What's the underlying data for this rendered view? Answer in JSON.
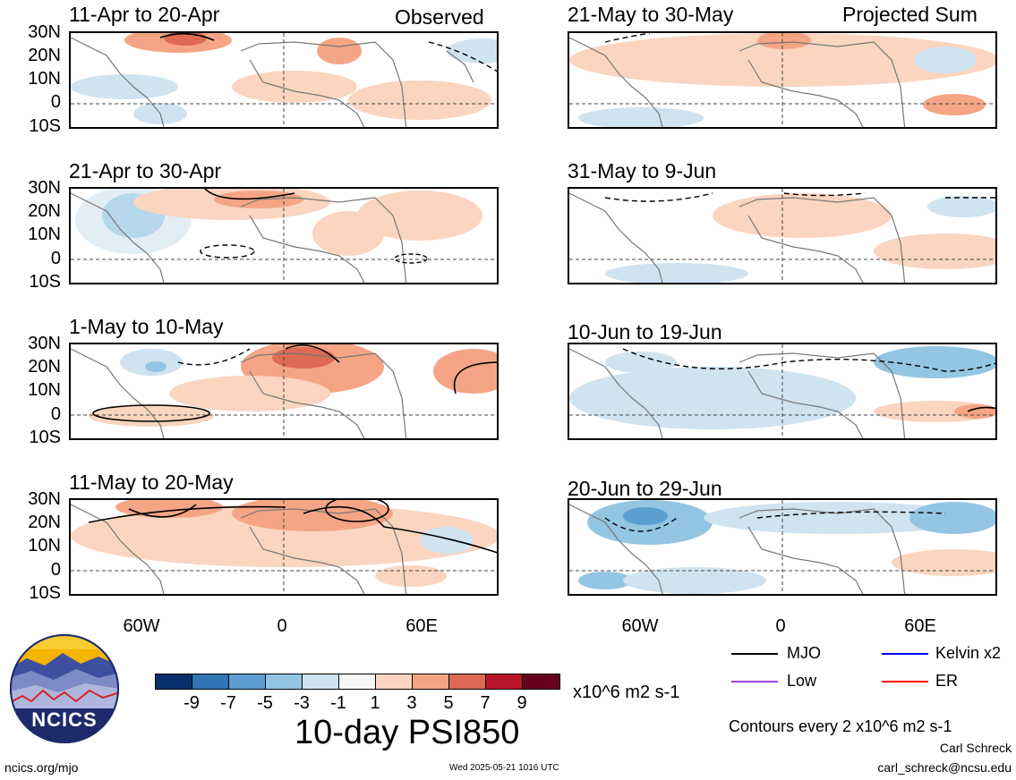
{
  "header": {
    "observed_label": "Observed",
    "projected_label": "Projected Sum"
  },
  "panels": [
    {
      "title": "11-Apr to 20-Apr"
    },
    {
      "title": "21-Apr to 30-Apr"
    },
    {
      "title": "1-May to 10-May"
    },
    {
      "title": "11-May to 20-May"
    },
    {
      "title": "21-May to 30-May"
    },
    {
      "title": "31-May to 9-Jun"
    },
    {
      "title": "10-Jun to 19-Jun"
    },
    {
      "title": "20-Jun to 29-Jun"
    }
  ],
  "lat_labels": [
    "30N",
    "20N",
    "10N",
    "0",
    "10S"
  ],
  "lon_labels": [
    "60W",
    "0",
    "60E"
  ],
  "colorbar": {
    "colors": [
      "#08306b",
      "#2f74b5",
      "#5b9fd1",
      "#94c5e2",
      "#cfe3f0",
      "#f7f7f7",
      "#fbd5c0",
      "#f5a585",
      "#de6a55",
      "#b8172a",
      "#67001f"
    ],
    "labels": [
      "-9",
      "-7",
      "-5",
      "-3",
      "-1",
      "1",
      "3",
      "5",
      "7",
      "9"
    ],
    "units": "x10^6 m2 s-1"
  },
  "main_title": "10-day PSI850",
  "legend": {
    "items": [
      {
        "label": "MJO",
        "color": "#000000"
      },
      {
        "label": "Kelvin x2",
        "color": "#0000ff"
      },
      {
        "label": "Low",
        "color": "#a040e0"
      },
      {
        "label": "ER",
        "color": "#ff0000"
      }
    ],
    "contour_note": "Contours every 2 x10^6 m2 s-1"
  },
  "logo": {
    "text": "NCICS"
  },
  "footer": {
    "left": "ncics.org/mjo",
    "center": "Wed 2025-05-21 1016 UTC",
    "author": "Carl Schreck",
    "email": "carl_schreck@ncsu.edu"
  }
}
